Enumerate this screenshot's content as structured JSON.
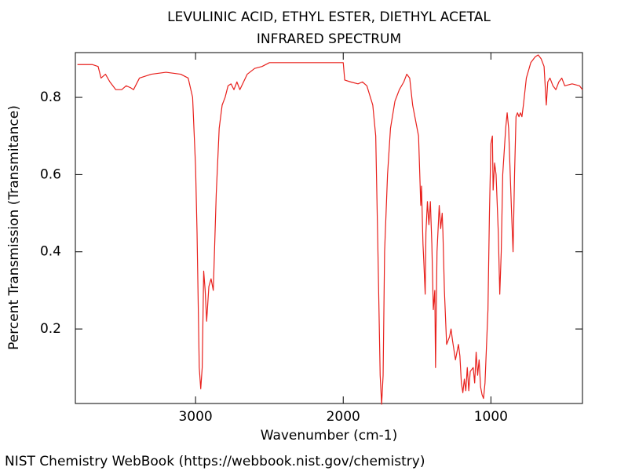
{
  "chart_data": {
    "type": "line",
    "title": "LEVULINIC ACID, ETHYL ESTER, DIETHYL ACETAL",
    "subtitle": "INFRARED SPECTRUM",
    "x_label": "Wavenumber (cm-1)",
    "y_label": "Percent Transmission (Transmitance)",
    "footer": "NIST Chemistry WebBook (https://webbook.nist.gov/chemistry)",
    "color": "#e8201c",
    "xlim": [
      3814,
      380
    ],
    "ylim": [
      0.007,
      0.916
    ],
    "xticks": [
      3000,
      2000,
      1000
    ],
    "yticks": [
      0.2,
      0.4,
      0.6,
      0.8
    ],
    "x": [
      3800,
      3700,
      3660,
      3640,
      3610,
      3580,
      3540,
      3500,
      3470,
      3440,
      3420,
      3380,
      3300,
      3200,
      3100,
      3050,
      3020,
      3000,
      2990,
      2975,
      2965,
      2955,
      2945,
      2935,
      2925,
      2910,
      2895,
      2880,
      2860,
      2840,
      2820,
      2800,
      2780,
      2760,
      2740,
      2720,
      2700,
      2650,
      2600,
      2550,
      2500,
      2300,
      2000,
      1990,
      1950,
      1900,
      1870,
      1840,
      1800,
      1780,
      1765,
      1750,
      1740,
      1730,
      1720,
      1700,
      1680,
      1650,
      1620,
      1590,
      1570,
      1550,
      1530,
      1490,
      1475,
      1470,
      1460,
      1455,
      1445,
      1440,
      1430,
      1420,
      1410,
      1400,
      1390,
      1380,
      1375,
      1365,
      1350,
      1340,
      1330,
      1325,
      1315,
      1300,
      1280,
      1270,
      1260,
      1240,
      1220,
      1210,
      1200,
      1190,
      1180,
      1170,
      1160,
      1150,
      1140,
      1120,
      1110,
      1100,
      1090,
      1080,
      1070,
      1060,
      1050,
      1040,
      1020,
      1010,
      1000,
      990,
      985,
      975,
      965,
      950,
      940,
      930,
      920,
      900,
      890,
      880,
      860,
      850,
      840,
      830,
      820,
      810,
      800,
      790,
      780,
      760,
      730,
      700,
      680,
      660,
      640,
      625,
      615,
      600,
      580,
      560,
      540,
      520,
      500,
      450,
      400,
      380
    ],
    "values": [
      0.885,
      0.885,
      0.88,
      0.85,
      0.86,
      0.84,
      0.82,
      0.82,
      0.83,
      0.825,
      0.82,
      0.85,
      0.86,
      0.865,
      0.86,
      0.85,
      0.8,
      0.62,
      0.45,
      0.1,
      0.045,
      0.1,
      0.35,
      0.3,
      0.22,
      0.31,
      0.33,
      0.3,
      0.55,
      0.72,
      0.78,
      0.8,
      0.83,
      0.835,
      0.82,
      0.84,
      0.82,
      0.86,
      0.875,
      0.88,
      0.89,
      0.89,
      0.89,
      0.845,
      0.84,
      0.835,
      0.84,
      0.83,
      0.78,
      0.7,
      0.4,
      0.08,
      0.005,
      0.08,
      0.4,
      0.6,
      0.72,
      0.79,
      0.82,
      0.84,
      0.86,
      0.85,
      0.78,
      0.7,
      0.52,
      0.57,
      0.42,
      0.38,
      0.29,
      0.45,
      0.53,
      0.47,
      0.53,
      0.42,
      0.25,
      0.3,
      0.1,
      0.4,
      0.52,
      0.46,
      0.5,
      0.45,
      0.3,
      0.16,
      0.18,
      0.2,
      0.17,
      0.12,
      0.16,
      0.13,
      0.06,
      0.035,
      0.07,
      0.04,
      0.1,
      0.04,
      0.09,
      0.1,
      0.06,
      0.14,
      0.08,
      0.12,
      0.05,
      0.03,
      0.02,
      0.06,
      0.25,
      0.5,
      0.68,
      0.7,
      0.56,
      0.63,
      0.6,
      0.45,
      0.29,
      0.4,
      0.6,
      0.72,
      0.76,
      0.72,
      0.5,
      0.4,
      0.6,
      0.75,
      0.76,
      0.75,
      0.76,
      0.75,
      0.78,
      0.85,
      0.89,
      0.905,
      0.91,
      0.9,
      0.88,
      0.78,
      0.84,
      0.85,
      0.83,
      0.82,
      0.84,
      0.85,
      0.83,
      0.835,
      0.83,
      0.82
    ]
  }
}
